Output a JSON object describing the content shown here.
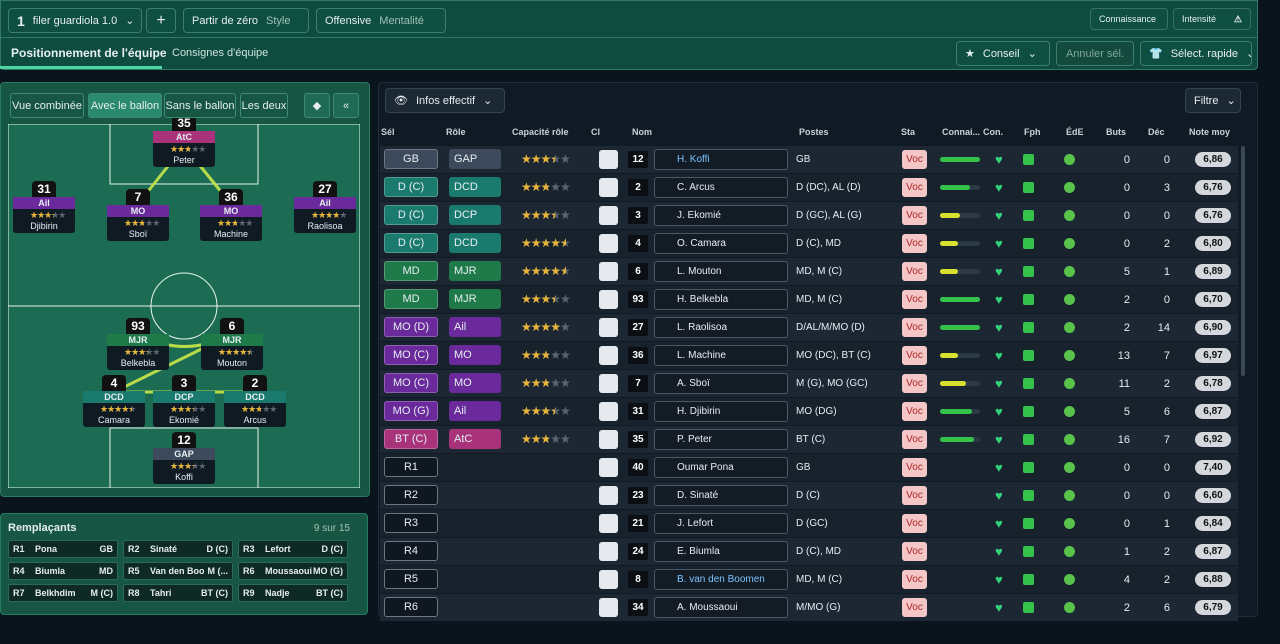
{
  "topbar": {
    "tactic_slot": "1",
    "tactic_name": "filer guardiola 1.0",
    "add": "+",
    "style_value": "Partir de zéro",
    "style_label": "Style",
    "mentality_value": "Offensive",
    "mentality_label": "Mentalité",
    "knowledge": "Connaissance",
    "intensity": "Intensité"
  },
  "tabs": [
    "Positionnement de l'équipe",
    "Consignes d'équipe"
  ],
  "actions": {
    "advice": "Conseil",
    "cancel": "Annuler sél.",
    "quick_select": "Sélect. rapide"
  },
  "pitch": {
    "views": [
      "Vue combinée",
      "Avec le ballon",
      "Sans le ballon",
      "Les deux"
    ],
    "players": [
      {
        "number": 35,
        "role": "AtC",
        "stars": 2.5,
        "name": "Peter",
        "color": "#a8337a"
      },
      {
        "number": 31,
        "role": "Ail",
        "stars": 3,
        "name": "Djibirin",
        "color": "#6a2a9c"
      },
      {
        "number": 7,
        "role": "MO",
        "stars": 2.5,
        "name": "Sboï",
        "color": "#6a2a9c"
      },
      {
        "number": 36,
        "role": "MO",
        "stars": 2.5,
        "name": "Machine",
        "color": "#6a2a9c"
      },
      {
        "number": 27,
        "role": "Ail",
        "stars": 3.5,
        "name": "Raolisoa",
        "color": "#6a2a9c"
      },
      {
        "number": 93,
        "role": "MJR",
        "stars": 3,
        "name": "Belkebla",
        "color": "#1f7a49"
      },
      {
        "number": 6,
        "role": "MJR",
        "stars": 4,
        "name": "Mouton",
        "color": "#1f7a49"
      },
      {
        "number": 4,
        "role": "DCD",
        "stars": 4,
        "name": "Camara",
        "color": "#1b7a6e"
      },
      {
        "number": 3,
        "role": "DCP",
        "stars": 3,
        "name": "Ekomié",
        "color": "#1b7a6e"
      },
      {
        "number": 2,
        "role": "DCD",
        "stars": 2.5,
        "name": "Arcus",
        "color": "#1b7a6e"
      },
      {
        "number": 12,
        "role": "GAP",
        "stars": 3,
        "name": "Koffi",
        "color": "#3d4a5c"
      }
    ]
  },
  "subs": {
    "title": "Remplaçants",
    "count": "9 sur 15",
    "rows": [
      {
        "slot": "R1",
        "name": "Pona",
        "position": "GB"
      },
      {
        "slot": "R2",
        "name": "Sinaté",
        "position": "D (C)"
      },
      {
        "slot": "R3",
        "name": "Lefort",
        "position": "D (C)"
      },
      {
        "slot": "R4",
        "name": "Biumla",
        "position": "MD"
      },
      {
        "slot": "R5",
        "name": "Van den Boo...",
        "position": "M (..."
      },
      {
        "slot": "R6",
        "name": "Moussaoui",
        "position": "MO (G)"
      },
      {
        "slot": "R7",
        "name": "Belkhdim",
        "position": "M (C)"
      },
      {
        "slot": "R8",
        "name": "Tahri",
        "position": "BT (C)"
      },
      {
        "slot": "R9",
        "name": "Nadje",
        "position": "BT (C)"
      }
    ]
  },
  "squad": {
    "view": "Infos effectif",
    "filter": "Filtre",
    "headers": [
      "Sél",
      "Rôle",
      "Capacité rôle",
      "Cl",
      "Nom",
      "Postes",
      "Sta",
      "Connai...",
      "Con.",
      "Fph",
      "ÉdE",
      "Buts",
      "Déc",
      "Note moy"
    ],
    "stamina_label": "Voc",
    "rows": [
      {
        "sel": "GB",
        "color": "#3d4a5c",
        "role": "GAP",
        "stars": 3,
        "number": 12,
        "name": "H. Koffi",
        "positions": "GB",
        "familiarity": 100,
        "goals": 0,
        "decisive": 0,
        "rating": "6,86"
      },
      {
        "sel": "D (C)",
        "color": "#1b7a6e",
        "role": "DCD",
        "stars": 2.5,
        "number": 2,
        "name": "C. Arcus",
        "positions": "D (DC), AL (D)",
        "familiarity": 75,
        "goals": 0,
        "decisive": 3,
        "rating": "6,76"
      },
      {
        "sel": "D (C)",
        "color": "#1b7a6e",
        "role": "DCP",
        "stars": 3,
        "number": 3,
        "name": "J. Ekomié",
        "positions": "D (GC), AL (G)",
        "familiarity": 50,
        "goals": 0,
        "decisive": 0,
        "rating": "6,76"
      },
      {
        "sel": "D (C)",
        "color": "#1b7a6e",
        "role": "DCD",
        "stars": 4,
        "number": 4,
        "name": "O. Camara",
        "positions": "D (C), MD",
        "familiarity": 45,
        "goals": 0,
        "decisive": 2,
        "rating": "6,80"
      },
      {
        "sel": "MD",
        "color": "#1f7a49",
        "role": "MJR",
        "stars": 4,
        "number": 6,
        "name": "L. Mouton",
        "positions": "MD, M (C)",
        "familiarity": 45,
        "goals": 5,
        "decisive": 1,
        "rating": "6,89"
      },
      {
        "sel": "MD",
        "color": "#1f7a49",
        "role": "MJR",
        "stars": 3,
        "number": 93,
        "name": "H. Belkebla",
        "positions": "MD, M (C)",
        "familiarity": 100,
        "goals": 2,
        "decisive": 0,
        "rating": "6,70"
      },
      {
        "sel": "MO (D)",
        "color": "#6a2a9c",
        "role": "Ail",
        "stars": 3.5,
        "number": 27,
        "name": "L. Raolisoa",
        "positions": "D/AL/M/MO (D)",
        "familiarity": 100,
        "goals": 2,
        "decisive": 14,
        "rating": "6,90"
      },
      {
        "sel": "MO (C)",
        "color": "#6a2a9c",
        "role": "MO",
        "stars": 2.5,
        "number": 36,
        "name": "L. Machine",
        "positions": "MO (DC), BT (C)",
        "familiarity": 45,
        "goals": 13,
        "decisive": 7,
        "rating": "6,97"
      },
      {
        "sel": "MO (C)",
        "color": "#6a2a9c",
        "role": "MO",
        "stars": 2.5,
        "number": 7,
        "name": "A. Sboï",
        "positions": "M (G), MO (GC)",
        "familiarity": 65,
        "goals": 11,
        "decisive": 2,
        "rating": "6,78"
      },
      {
        "sel": "MO (G)",
        "color": "#6a2a9c",
        "role": "Ail",
        "stars": 3,
        "number": 31,
        "name": "H. Djibirin",
        "positions": "MO (DG)",
        "familiarity": 80,
        "goals": 5,
        "decisive": 6,
        "rating": "6,87"
      },
      {
        "sel": "BT (C)",
        "color": "#a8337a",
        "role": "AtC",
        "stars": 2.5,
        "number": 35,
        "name": "P. Peter",
        "positions": "BT (C)",
        "familiarity": 85,
        "goals": 16,
        "decisive": 7,
        "rating": "6,92"
      },
      {
        "sel": "R1",
        "number": 40,
        "name": "Oumar Pona",
        "positions": "GB",
        "goals": 0,
        "decisive": 0,
        "rating": "7,40"
      },
      {
        "sel": "R2",
        "number": 23,
        "name": "D. Sinaté",
        "positions": "D (C)",
        "goals": 0,
        "decisive": 0,
        "rating": "6,60"
      },
      {
        "sel": "R3",
        "number": 21,
        "name": "J. Lefort",
        "positions": "D (GC)",
        "goals": 0,
        "decisive": 1,
        "rating": "6,84"
      },
      {
        "sel": "R4",
        "number": 24,
        "name": "E. Biumla",
        "positions": "D (C), MD",
        "goals": 1,
        "decisive": 2,
        "rating": "6,87"
      },
      {
        "sel": "R5",
        "number": 8,
        "name": "B. van den Boomen",
        "positions": "MD, M (C)",
        "goals": 4,
        "decisive": 2,
        "rating": "6,88"
      },
      {
        "sel": "R6",
        "number": 34,
        "name": "A. Moussaoui",
        "positions": "M/MO (G)",
        "goals": 2,
        "decisive": 6,
        "rating": "6,79"
      }
    ]
  }
}
